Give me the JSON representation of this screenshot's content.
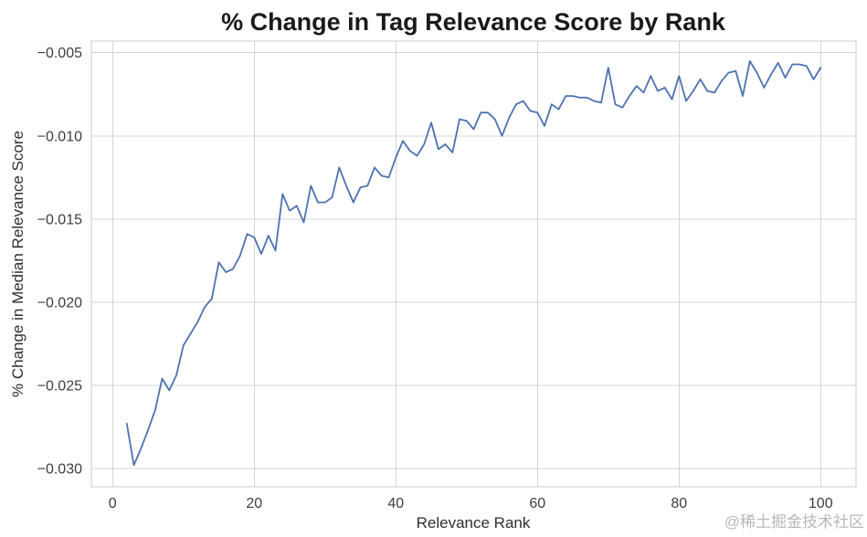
{
  "watermark": "@稀土掘金技术社区",
  "chart_data": {
    "type": "line",
    "title": "% Change in Tag Relevance Score by Rank",
    "xlabel": "Relevance Rank",
    "ylabel": "% Change in Median Relevance Score",
    "grid": true,
    "legend": false,
    "background": "#ffffff",
    "line_color": "#4c72b0",
    "grid_color": "#d5d5d5",
    "spine_color": "#cccccc",
    "xlim": [
      -3,
      105
    ],
    "ylim": [
      -0.0311,
      -0.0043
    ],
    "x_ticks": [
      0,
      20,
      40,
      60,
      80,
      100
    ],
    "x_tick_labels": [
      "0",
      "20",
      "40",
      "60",
      "80",
      "100"
    ],
    "y_ticks": [
      -0.005,
      -0.01,
      -0.015,
      -0.02,
      -0.025,
      -0.03
    ],
    "y_tick_labels": [
      "−0.005",
      "−0.010",
      "−0.015",
      "−0.020",
      "−0.025",
      "−0.030"
    ],
    "x": [
      2,
      3,
      4,
      5,
      6,
      7,
      8,
      9,
      10,
      11,
      12,
      13,
      14,
      15,
      16,
      17,
      18,
      19,
      20,
      21,
      22,
      23,
      24,
      25,
      26,
      27,
      28,
      29,
      30,
      31,
      32,
      33,
      34,
      35,
      36,
      37,
      38,
      39,
      40,
      41,
      42,
      43,
      44,
      45,
      46,
      47,
      48,
      49,
      50,
      51,
      52,
      53,
      54,
      55,
      56,
      57,
      58,
      59,
      60,
      61,
      62,
      63,
      64,
      65,
      66,
      67,
      68,
      69,
      70,
      71,
      72,
      73,
      74,
      75,
      76,
      77,
      78,
      79,
      80,
      81,
      82,
      83,
      84,
      85,
      86,
      87,
      88,
      89,
      90,
      91,
      92,
      93,
      94,
      95,
      96,
      97,
      98,
      99,
      100
    ],
    "values": [
      -0.0273,
      -0.0298,
      -0.0288,
      -0.0277,
      -0.0265,
      -0.0246,
      -0.0253,
      -0.0244,
      -0.0226,
      -0.0219,
      -0.0212,
      -0.0203,
      -0.0198,
      -0.0176,
      -0.0182,
      -0.018,
      -0.0172,
      -0.0159,
      -0.0161,
      -0.0171,
      -0.016,
      -0.0169,
      -0.0135,
      -0.0145,
      -0.0142,
      -0.0152,
      -0.013,
      -0.014,
      -0.014,
      -0.0137,
      -0.0119,
      -0.013,
      -0.014,
      -0.0131,
      -0.013,
      -0.0119,
      -0.0124,
      -0.0125,
      -0.0113,
      -0.0103,
      -0.0109,
      -0.0112,
      -0.0105,
      -0.0092,
      -0.0108,
      -0.0105,
      -0.011,
      -0.009,
      -0.0091,
      -0.0096,
      -0.0086,
      -0.0086,
      -0.009,
      -0.01,
      -0.0089,
      -0.0081,
      -0.0079,
      -0.0085,
      -0.0086,
      -0.0094,
      -0.0081,
      -0.0084,
      -0.0076,
      -0.0076,
      -0.0077,
      -0.0077,
      -0.0079,
      -0.008,
      -0.0059,
      -0.0081,
      -0.0083,
      -0.0076,
      -0.007,
      -0.0074,
      -0.0064,
      -0.0073,
      -0.0071,
      -0.0078,
      -0.0064,
      -0.0079,
      -0.0073,
      -0.0066,
      -0.0073,
      -0.0074,
      -0.0067,
      -0.0062,
      -0.0061,
      -0.0076,
      -0.0055,
      -0.0062,
      -0.0071,
      -0.0063,
      -0.0056,
      -0.0065,
      -0.0057,
      -0.0057,
      -0.0058,
      -0.0066,
      -0.0059
    ]
  }
}
